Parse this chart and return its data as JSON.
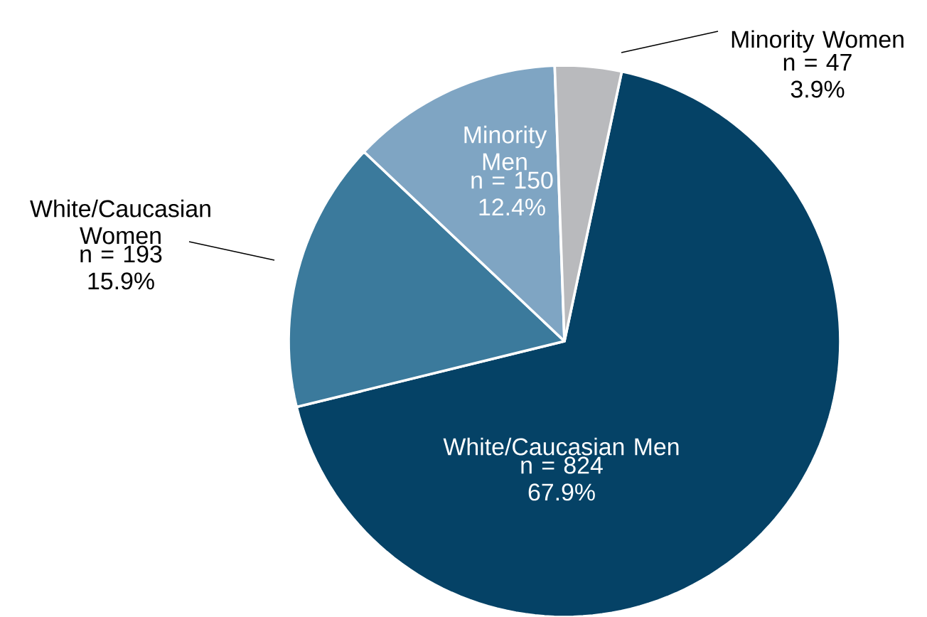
{
  "chart_data": {
    "type": "pie",
    "categories": [
      "White/Caucasian Men",
      "White/Caucasian Women",
      "Minority Men",
      "Minority Women"
    ],
    "values": [
      67.9,
      15.9,
      12.4,
      3.9
    ],
    "value_labels": [
      "n = 824 67.9%",
      "n = 193 15.9%",
      "n = 150 12.4%",
      "n = 47 3.9%"
    ],
    "colors": [
      "#054266",
      "#3b7a9c",
      "#7fa5c3",
      "#b9babd"
    ]
  }
}
